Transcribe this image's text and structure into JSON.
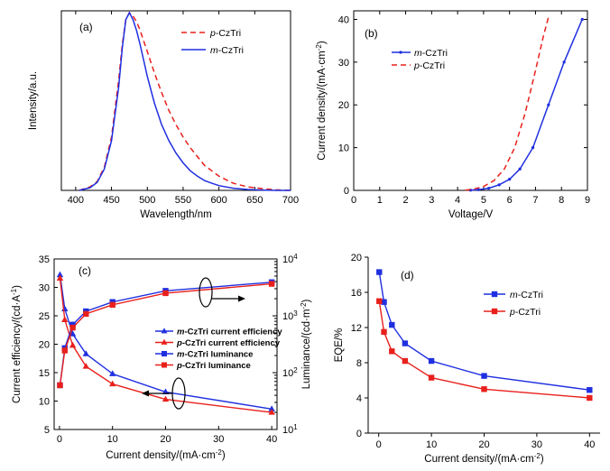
{
  "chart_data": [
    {
      "id": "a",
      "type": "line",
      "panel_label": "(a)",
      "xlabel": "Wavelength/nm",
      "ylabel": "Intensity/a.u.",
      "xlim": [
        380,
        700
      ],
      "xticks": [
        400,
        450,
        500,
        550,
        600,
        650,
        700
      ],
      "ylim": [
        0,
        1
      ],
      "yticks_shown": false,
      "legend_position": "top-right",
      "series": [
        {
          "name": "p-CzTri",
          "color": "#e8201c",
          "style": "dashed",
          "x": [
            405,
            420,
            430,
            440,
            450,
            460,
            465,
            470,
            475,
            480,
            485,
            490,
            500,
            510,
            520,
            530,
            540,
            550,
            560,
            570,
            580,
            590,
            600,
            620,
            640,
            660,
            680,
            700
          ],
          "values": [
            0.0,
            0.02,
            0.05,
            0.13,
            0.3,
            0.62,
            0.82,
            0.96,
            1.0,
            0.98,
            0.95,
            0.9,
            0.78,
            0.66,
            0.55,
            0.45,
            0.37,
            0.3,
            0.24,
            0.19,
            0.14,
            0.11,
            0.08,
            0.04,
            0.02,
            0.01,
            0.003,
            0.0
          ]
        },
        {
          "name": "m-CzTri",
          "color": "#1f2fe0",
          "style": "solid",
          "x": [
            405,
            420,
            430,
            440,
            450,
            460,
            465,
            470,
            475,
            480,
            485,
            490,
            500,
            510,
            520,
            530,
            540,
            550,
            560,
            570,
            580,
            590,
            600,
            620,
            640,
            660,
            680,
            700
          ],
          "values": [
            0.0,
            0.015,
            0.045,
            0.12,
            0.28,
            0.58,
            0.8,
            0.96,
            1.0,
            0.96,
            0.9,
            0.82,
            0.64,
            0.49,
            0.37,
            0.28,
            0.21,
            0.155,
            0.11,
            0.08,
            0.055,
            0.04,
            0.027,
            0.012,
            0.005,
            0.002,
            0.0,
            0.0
          ]
        }
      ]
    },
    {
      "id": "b",
      "type": "line",
      "panel_label": "(b)",
      "xlabel": "Voltage/V",
      "ylabel": "Current density/(mA·cm⁻²)",
      "xlim": [
        0,
        9
      ],
      "xticks": [
        0,
        1,
        2,
        3,
        4,
        5,
        6,
        7,
        8,
        9
      ],
      "ylim": [
        0,
        42
      ],
      "yticks": [
        0,
        10,
        20,
        30,
        40
      ],
      "legend_position": "top-left",
      "series": [
        {
          "name": "m-CzTri",
          "color": "#1f2fe0",
          "style": "solid-markers",
          "x": [
            4.5,
            4.8,
            5.2,
            5.6,
            6.0,
            6.4,
            6.9,
            7.5,
            8.1,
            8.8
          ],
          "values": [
            0.05,
            0.15,
            0.5,
            1.3,
            2.6,
            5.0,
            10.0,
            20.0,
            30.0,
            40.0
          ]
        },
        {
          "name": "p-CzTri",
          "color": "#e8201c",
          "style": "dashed",
          "x": [
            4.3,
            4.6,
            5.0,
            5.4,
            5.8,
            6.2,
            6.6,
            7.0,
            7.3,
            7.5
          ],
          "values": [
            0.05,
            0.3,
            0.9,
            2.3,
            5.0,
            10.0,
            18.0,
            28.0,
            36.0,
            40.5
          ]
        }
      ]
    },
    {
      "id": "c",
      "type": "line",
      "panel_label": "(c)",
      "xlabel": "Current density/(mA·cm⁻²)",
      "ylabel": "Current efficiency/(cd·A⁻¹)",
      "ylabel_right": "Luminance/(cd·m⁻²)",
      "xlim": [
        -1,
        41
      ],
      "xticks": [
        0,
        10,
        20,
        30,
        40
      ],
      "ylim": [
        5,
        35
      ],
      "yticks": [
        5,
        10,
        15,
        20,
        25,
        30,
        35
      ],
      "ylim_right_log": [
        10,
        10000
      ],
      "yticks_right": [
        "10¹",
        "10²",
        "10³",
        "10⁴"
      ],
      "legend_position": "center-right",
      "series": [
        {
          "name": "m-CzTri current efficiency",
          "color": "#1f2fe0",
          "marker": "triangle",
          "axis": "left",
          "x": [
            0.1,
            1,
            2.5,
            5,
            10,
            20,
            40
          ],
          "values": [
            32.2,
            26.2,
            21.8,
            18.3,
            14.8,
            11.6,
            8.6
          ]
        },
        {
          "name": "p-CzTri current efficiency",
          "color": "#e8201c",
          "marker": "triangle",
          "axis": "left",
          "x": [
            0.1,
            1,
            2.5,
            5,
            10,
            20,
            40
          ],
          "values": [
            31.6,
            24.3,
            19.8,
            16.1,
            13.0,
            10.3,
            8.0
          ]
        },
        {
          "name": "m-CzTri luminance",
          "color": "#1f2fe0",
          "marker": "square",
          "axis": "right",
          "x": [
            0.1,
            1,
            2.5,
            5,
            10,
            20,
            40
          ],
          "values": [
            60,
            270,
            700,
            1200,
            1750,
            2750,
            3900
          ]
        },
        {
          "name": "p-CzTri luminance",
          "color": "#e8201c",
          "marker": "square",
          "axis": "right",
          "x": [
            0.1,
            1,
            2.5,
            5,
            10,
            20,
            40
          ],
          "values": [
            60,
            245,
            620,
            1080,
            1560,
            2500,
            3650
          ]
        }
      ]
    },
    {
      "id": "d",
      "type": "line",
      "panel_label": "(d)",
      "xlabel": "Current density/(mA·cm⁻²)",
      "ylabel": "EQE/%",
      "xlim": [
        -2,
        42
      ],
      "xticks": [
        0,
        10,
        20,
        30,
        40
      ],
      "ylim": [
        0,
        20
      ],
      "yticks": [
        0,
        4,
        8,
        12,
        16,
        20
      ],
      "legend_position": "top-right",
      "series": [
        {
          "name": "m-CzTri",
          "color": "#1f2fe0",
          "marker": "square",
          "x": [
            0.1,
            1,
            2.5,
            5,
            10,
            20,
            40
          ],
          "values": [
            18.3,
            14.9,
            12.3,
            10.2,
            8.2,
            6.5,
            4.9
          ]
        },
        {
          "name": "p-CzTri",
          "color": "#e8201c",
          "marker": "square",
          "x": [
            0.1,
            1,
            2.5,
            5,
            10,
            20,
            40
          ],
          "values": [
            15.0,
            11.5,
            9.3,
            8.2,
            6.3,
            5.0,
            4.0
          ]
        }
      ]
    }
  ]
}
